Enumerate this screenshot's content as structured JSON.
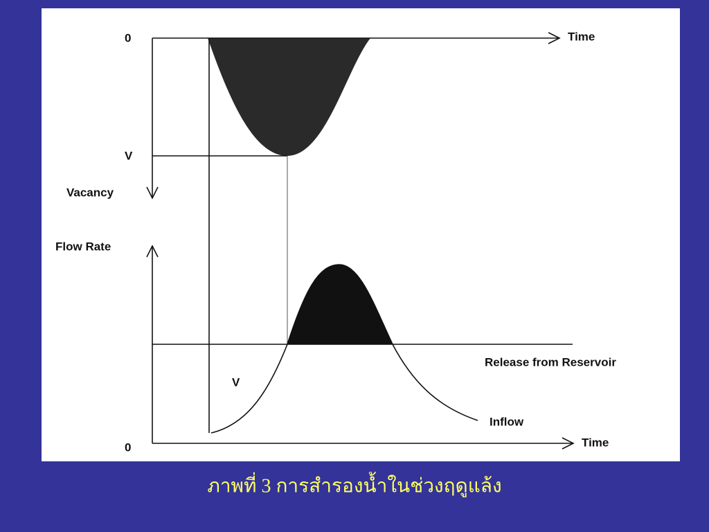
{
  "diagram": {
    "top": {
      "origin_label": "0",
      "x_axis_label": "Time",
      "v_label": "V",
      "y_axis_label": "Vacancy"
    },
    "bottom": {
      "y_axis_label": "Flow Rate",
      "release_label": "Release from Reservoir",
      "v_label": "V",
      "inflow_label": "Inflow",
      "origin_label": "0",
      "x_axis_label": "Time"
    }
  },
  "caption": "ภาพที่ 3 การสำรองน้ำในช่วงฤดูแล้ง"
}
